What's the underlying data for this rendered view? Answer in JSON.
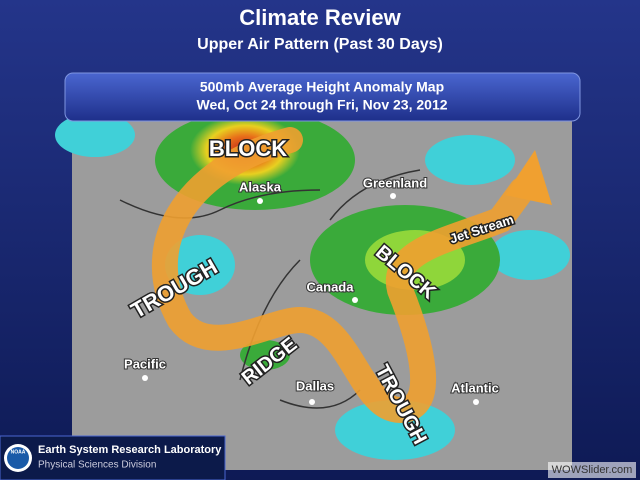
{
  "header": {
    "title": "Climate Review",
    "subtitle": "Upper Air Pattern (Past 30 Days)"
  },
  "panel": {
    "title": "500mb Average Height Anomaly Map",
    "dates": "Wed, Oct 24 through Fri, Nov 23, 2012"
  },
  "map": {
    "features": [
      "BLOCK",
      "TROUGH",
      "RIDGE",
      "TROUGH",
      "BLOCK",
      "Jet Stream"
    ],
    "places": [
      "Alaska",
      "Greenland",
      "Canada",
      "Pacific",
      "Dallas",
      "Atlantic"
    ]
  },
  "footer": {
    "lab": "Earth System Research Laboratory",
    "division": "Physical Sciences Division",
    "logo": "NOAA"
  },
  "watermark": "WOWSlider.com"
}
